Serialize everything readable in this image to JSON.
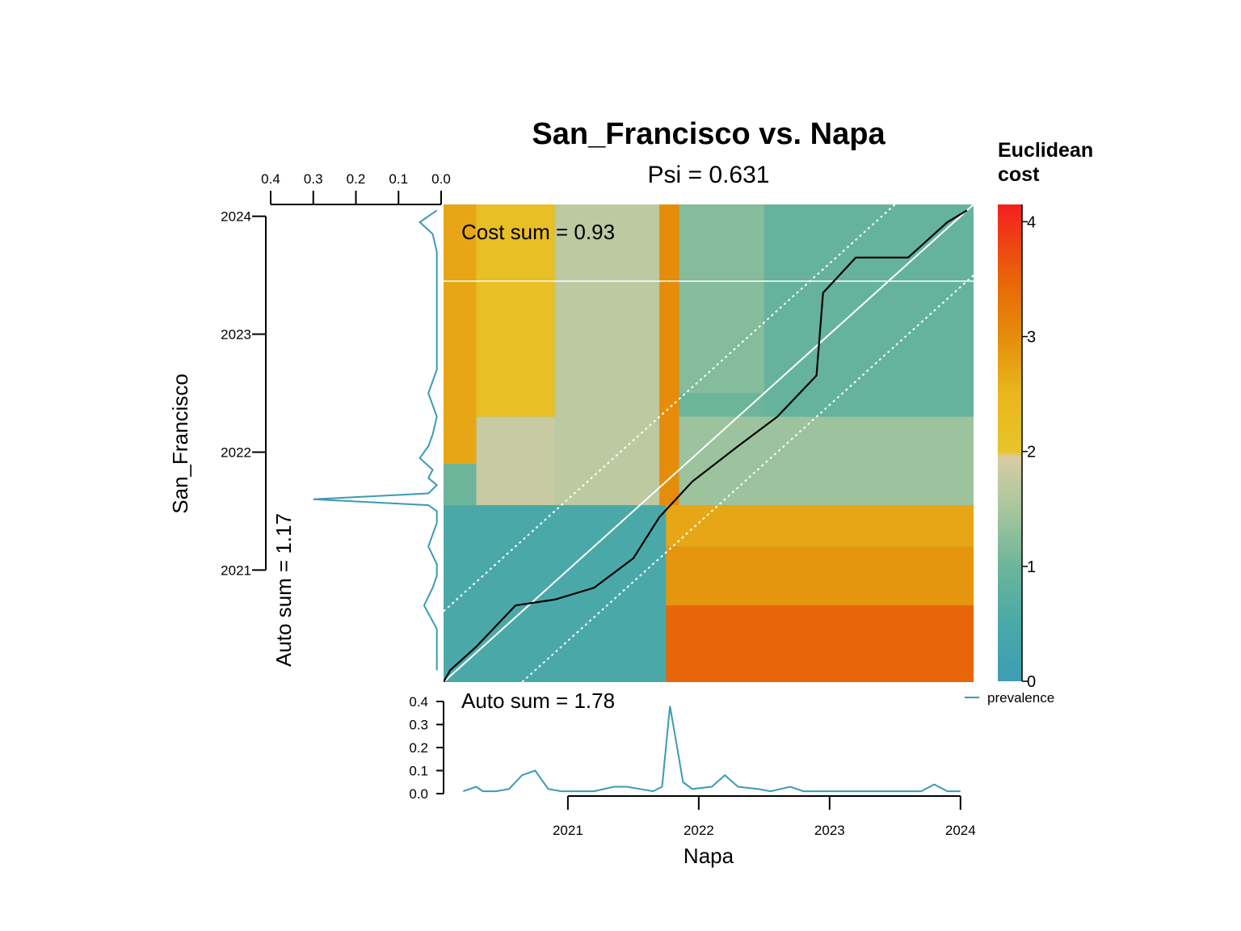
{
  "chart_data": {
    "type": "heatmap",
    "title": "San_Francisco vs. Napa",
    "subtitle": "Psi = 0.631",
    "annotations": {
      "cost_sum": "Cost sum =  0.93",
      "auto_sum_x": "Auto sum =  1.78",
      "auto_sum_y": "Auto sum =  1.17"
    },
    "xlabel": "Napa",
    "ylabel": "San_Francisco",
    "x_range": [
      2020.05,
      2024.1
    ],
    "y_range": [
      2020.05,
      2024.1
    ],
    "x_ticks": [
      "2021",
      "2022",
      "2023",
      "2024"
    ],
    "y_ticks": [
      "2021",
      "2022",
      "2023",
      "2024"
    ],
    "colorbar": {
      "title_line1": "Euclidean",
      "title_line2": "cost",
      "range": [
        0,
        4.15
      ],
      "ticks": [
        "0",
        "1",
        "2",
        "3",
        "4"
      ],
      "stops": [
        {
          "v": 0,
          "c": "#3d9db4"
        },
        {
          "v": 0.5,
          "c": "#4aa9a8"
        },
        {
          "v": 1,
          "c": "#6cb59a"
        },
        {
          "v": 1.5,
          "c": "#a8c69e"
        },
        {
          "v": 1.95,
          "c": "#d8cca2"
        },
        {
          "v": 2.0,
          "c": "#e8c42a"
        },
        {
          "v": 2.5,
          "c": "#e9b71c"
        },
        {
          "v": 3.0,
          "c": "#e58d0b"
        },
        {
          "v": 3.5,
          "c": "#e86508"
        },
        {
          "v": 4.15,
          "c": "#f41f1f"
        }
      ]
    },
    "cost_regions": [
      {
        "x": [
          2020.05,
          2020.3
        ],
        "y": [
          2021.9,
          2024.1
        ],
        "v": 2.7
      },
      {
        "x": [
          2020.3,
          2020.9
        ],
        "y": [
          2022.3,
          2024.1
        ],
        "v": 2.2
      },
      {
        "x": [
          2020.9,
          2021.7
        ],
        "y": [
          2021.55,
          2024.1
        ],
        "v": 1.7
      },
      {
        "x": [
          2021.7,
          2021.85
        ],
        "y": [
          2021.55,
          2024.1
        ],
        "v": 3.0
      },
      {
        "x": [
          2021.85,
          2022.5
        ],
        "y": [
          2022.5,
          2024.1
        ],
        "v": 1.2
      },
      {
        "x": [
          2022.5,
          2024.1
        ],
        "y": [
          2022.3,
          2024.1
        ],
        "v": 0.9
      },
      {
        "x": [
          2020.3,
          2020.9
        ],
        "y": [
          2021.55,
          2022.3
        ],
        "v": 1.8
      },
      {
        "x": [
          2021.85,
          2024.1
        ],
        "y": [
          2021.55,
          2022.3
        ],
        "v": 1.4
      },
      {
        "x": [
          2020.05,
          2021.75
        ],
        "y": [
          2020.05,
          2021.55
        ],
        "v": 0.5
      },
      {
        "x": [
          2021.75,
          2024.1
        ],
        "y": [
          2021.2,
          2021.55
        ],
        "v": 2.7
      },
      {
        "x": [
          2021.75,
          2024.1
        ],
        "y": [
          2020.7,
          2021.2
        ],
        "v": 2.9
      },
      {
        "x": [
          2021.75,
          2024.1
        ],
        "y": [
          2020.05,
          2020.7
        ],
        "v": 3.5
      }
    ],
    "cost_path": {
      "x": [
        2020.05,
        2020.1,
        2020.3,
        2020.6,
        2020.9,
        2021.2,
        2021.5,
        2021.7,
        2021.95,
        2022.3,
        2022.6,
        2022.9,
        2022.95,
        2023.2,
        2023.6,
        2023.9,
        2024.05
      ],
      "y": [
        2020.05,
        2020.15,
        2020.35,
        2020.7,
        2020.75,
        2020.85,
        2021.1,
        2021.45,
        2021.75,
        2022.05,
        2022.3,
        2022.65,
        2023.35,
        2023.65,
        2023.65,
        2023.95,
        2024.05
      ]
    },
    "highlight_y": 2023.45,
    "diagonal_offset": 0.6,
    "series": [
      {
        "name": "prevalence",
        "color": "#3a9bb3",
        "x": [
          2020.2,
          2020.3,
          2020.35,
          2020.45,
          2020.55,
          2020.65,
          2020.75,
          2020.8,
          2020.85,
          2020.95,
          2021.1,
          2021.2,
          2021.35,
          2021.45,
          2021.55,
          2021.65,
          2021.72,
          2021.78,
          2021.82,
          2021.88,
          2021.95,
          2022.1,
          2022.2,
          2022.3,
          2022.45,
          2022.55,
          2022.7,
          2022.8,
          2022.95,
          2023.1,
          2023.3,
          2023.5,
          2023.7,
          2023.8,
          2023.9,
          2024.0
        ],
        "y": [
          0.01,
          0.03,
          0.01,
          0.01,
          0.02,
          0.08,
          0.1,
          0.06,
          0.02,
          0.01,
          0.01,
          0.01,
          0.03,
          0.03,
          0.02,
          0.01,
          0.03,
          0.38,
          0.25,
          0.05,
          0.02,
          0.03,
          0.08,
          0.03,
          0.02,
          0.01,
          0.03,
          0.01,
          0.01,
          0.01,
          0.01,
          0.01,
          0.01,
          0.04,
          0.01,
          0.01
        ]
      },
      {
        "name": "prevalence",
        "color": "#3a9bb3",
        "axis": "y",
        "x": [
          2024.05,
          2023.95,
          2023.85,
          2023.7,
          2023.5,
          2023.3,
          2023.0,
          2022.7,
          2022.5,
          2022.3,
          2022.15,
          2022.05,
          2021.95,
          2021.85,
          2021.78,
          2021.72,
          2021.65,
          2021.6,
          2021.55,
          2021.5,
          2021.4,
          2021.2,
          2021.05,
          2020.95,
          2020.85,
          2020.7,
          2020.5,
          2020.3,
          2020.15
        ],
        "y": [
          0.01,
          0.05,
          0.02,
          0.01,
          0.01,
          0.01,
          0.01,
          0.01,
          0.03,
          0.01,
          0.02,
          0.03,
          0.05,
          0.02,
          0.03,
          0.01,
          0.03,
          0.3,
          0.03,
          0.01,
          0.01,
          0.03,
          0.01,
          0.01,
          0.02,
          0.04,
          0.01,
          0.01,
          0.01
        ]
      }
    ],
    "prevalence_ticks": [
      "0.0",
      "0.1",
      "0.2",
      "0.3",
      "0.4"
    ],
    "prevalence_range": [
      0,
      0.4
    ],
    "legend": {
      "label": "prevalence",
      "position": "bottom-right"
    }
  }
}
